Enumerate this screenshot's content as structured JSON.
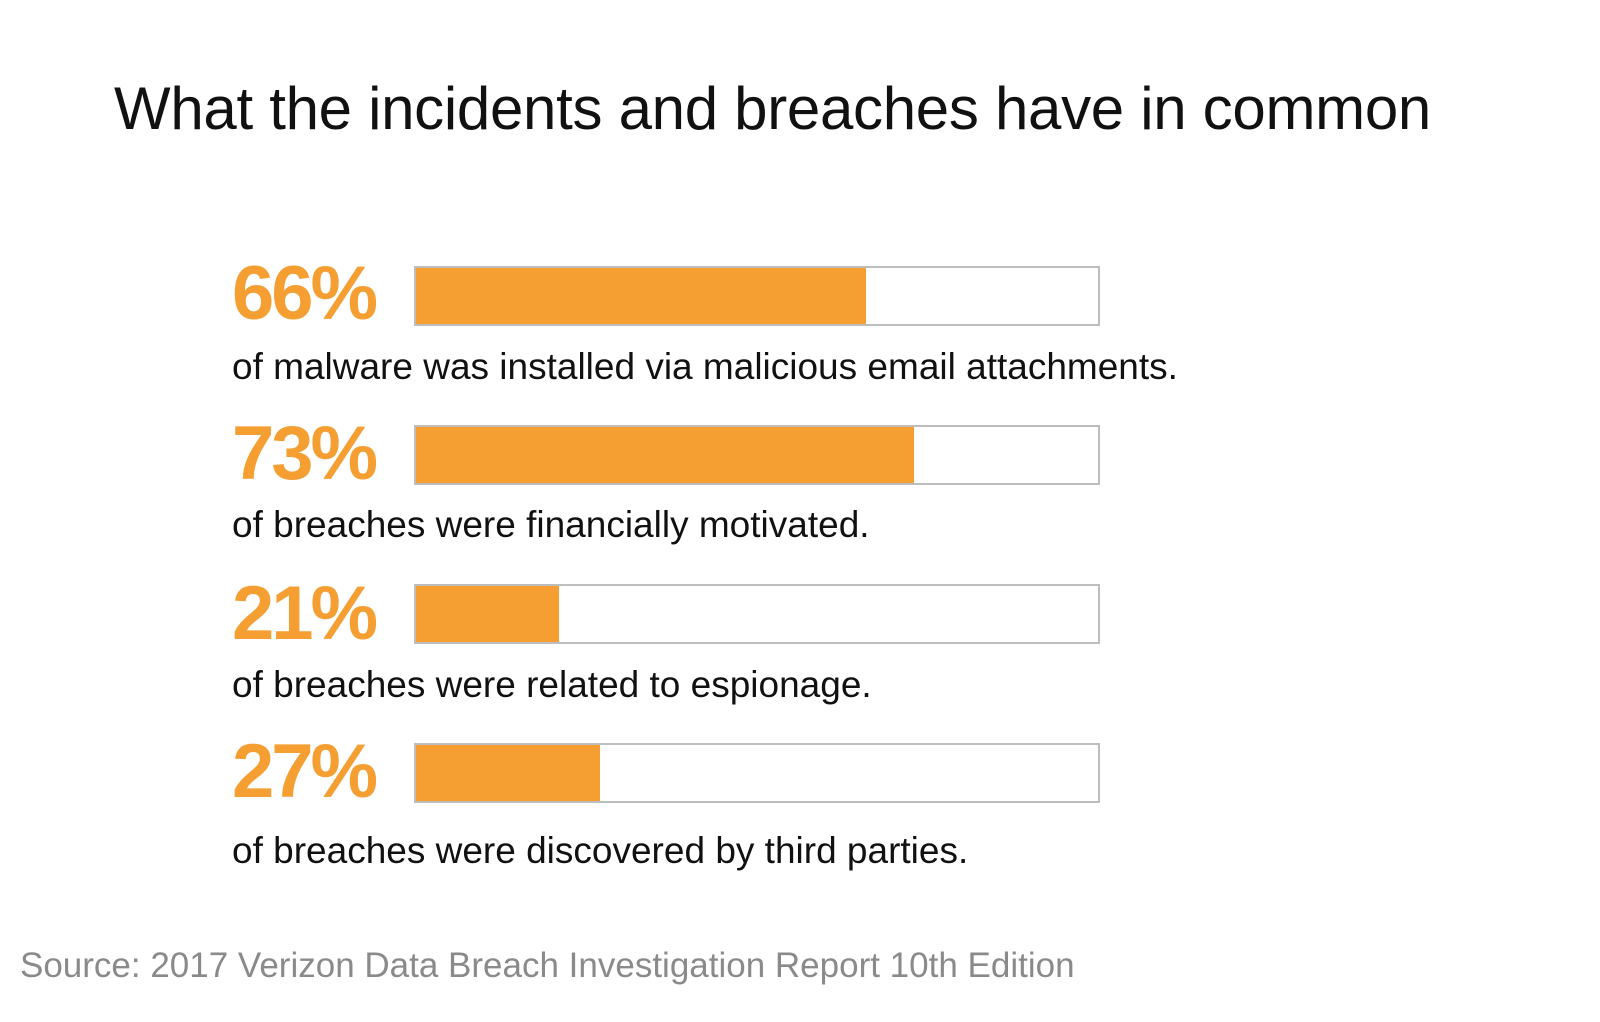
{
  "title": "What the incidents and breaches have in common",
  "source": "Source: 2017 Verizon Data Breach Investigation Report 10th Edition",
  "colors": {
    "accent": "#f59e32",
    "track_border": "#bdbdbd",
    "text": "#111111",
    "source_text": "#8a8a8a"
  },
  "chart_data": {
    "type": "bar",
    "title": "What the incidents and breaches have in common",
    "ylim": [
      0,
      100
    ],
    "items": [
      {
        "value": 66,
        "label": "66%",
        "description": "of malware was installed via malicious email attachments."
      },
      {
        "value": 73,
        "label": "73%",
        "description": "of breaches were financially motivated."
      },
      {
        "value": 21,
        "label": "21%",
        "description": "of breaches were related to espionage."
      },
      {
        "value": 27,
        "label": "27%",
        "description": "of breaches were discovered by third parties."
      }
    ]
  }
}
